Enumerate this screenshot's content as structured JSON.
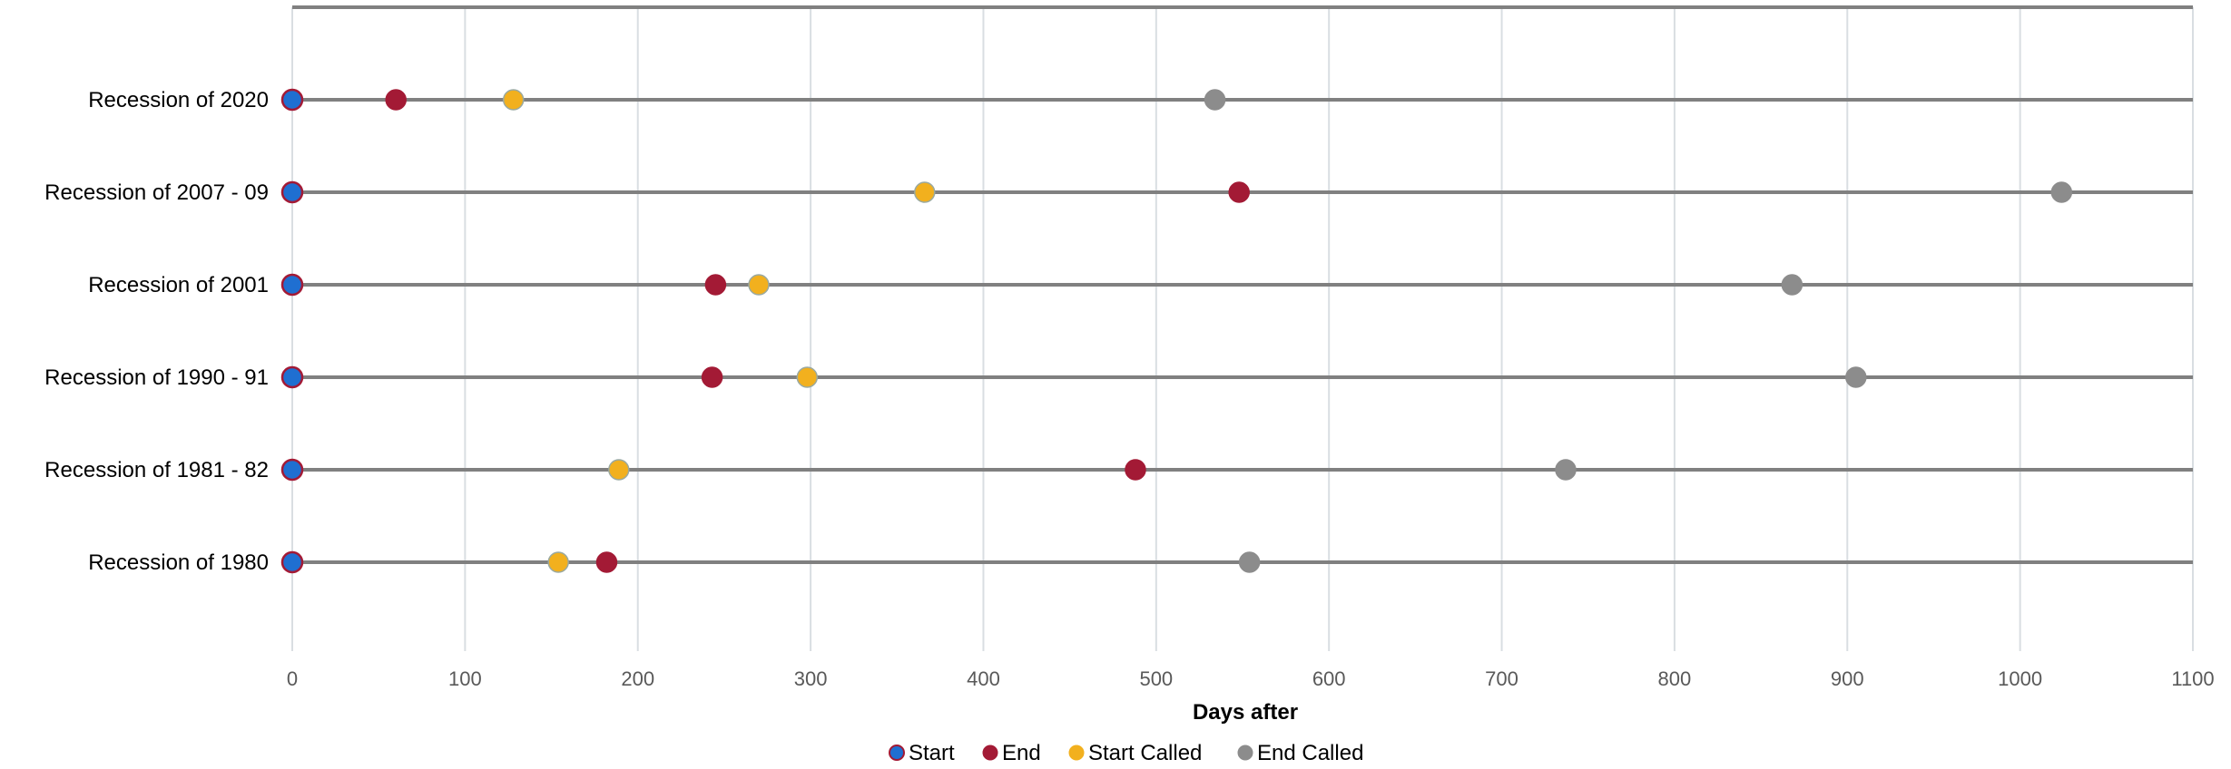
{
  "chart_data": {
    "type": "scatter",
    "title": "",
    "xlabel": "Days after",
    "ylabel": "",
    "xlim": [
      0,
      1100
    ],
    "xticks": [
      0,
      100,
      200,
      300,
      400,
      500,
      600,
      700,
      800,
      900,
      1000,
      1100
    ],
    "categories": [
      "Recession of 2020",
      "Recession of 2007 - 09",
      "Recession of 2001",
      "Recession of 1990 - 91",
      "Recession of 1981 - 82",
      "Recession of 1980"
    ],
    "grid": {
      "vertical": true,
      "horizontal_series_lines": true
    },
    "legend_position": "bottom",
    "series": [
      {
        "name": "Start",
        "color": "#1f6fd1",
        "values": [
          0,
          0,
          0,
          0,
          0,
          0
        ]
      },
      {
        "name": "End",
        "color": "#a31a35",
        "values": [
          60,
          548,
          245,
          243,
          488,
          182
        ]
      },
      {
        "name": "Start Called",
        "color": "#f2b01e",
        "values": [
          128,
          366,
          270,
          298,
          189,
          154
        ]
      },
      {
        "name": "End Called",
        "color": "#8c8c8c",
        "values": [
          534,
          1024,
          868,
          905,
          737,
          554
        ]
      }
    ],
    "colors": {
      "row_line": "#808080",
      "grid": "#d9dee2",
      "start_outline": "#a31a35"
    }
  }
}
